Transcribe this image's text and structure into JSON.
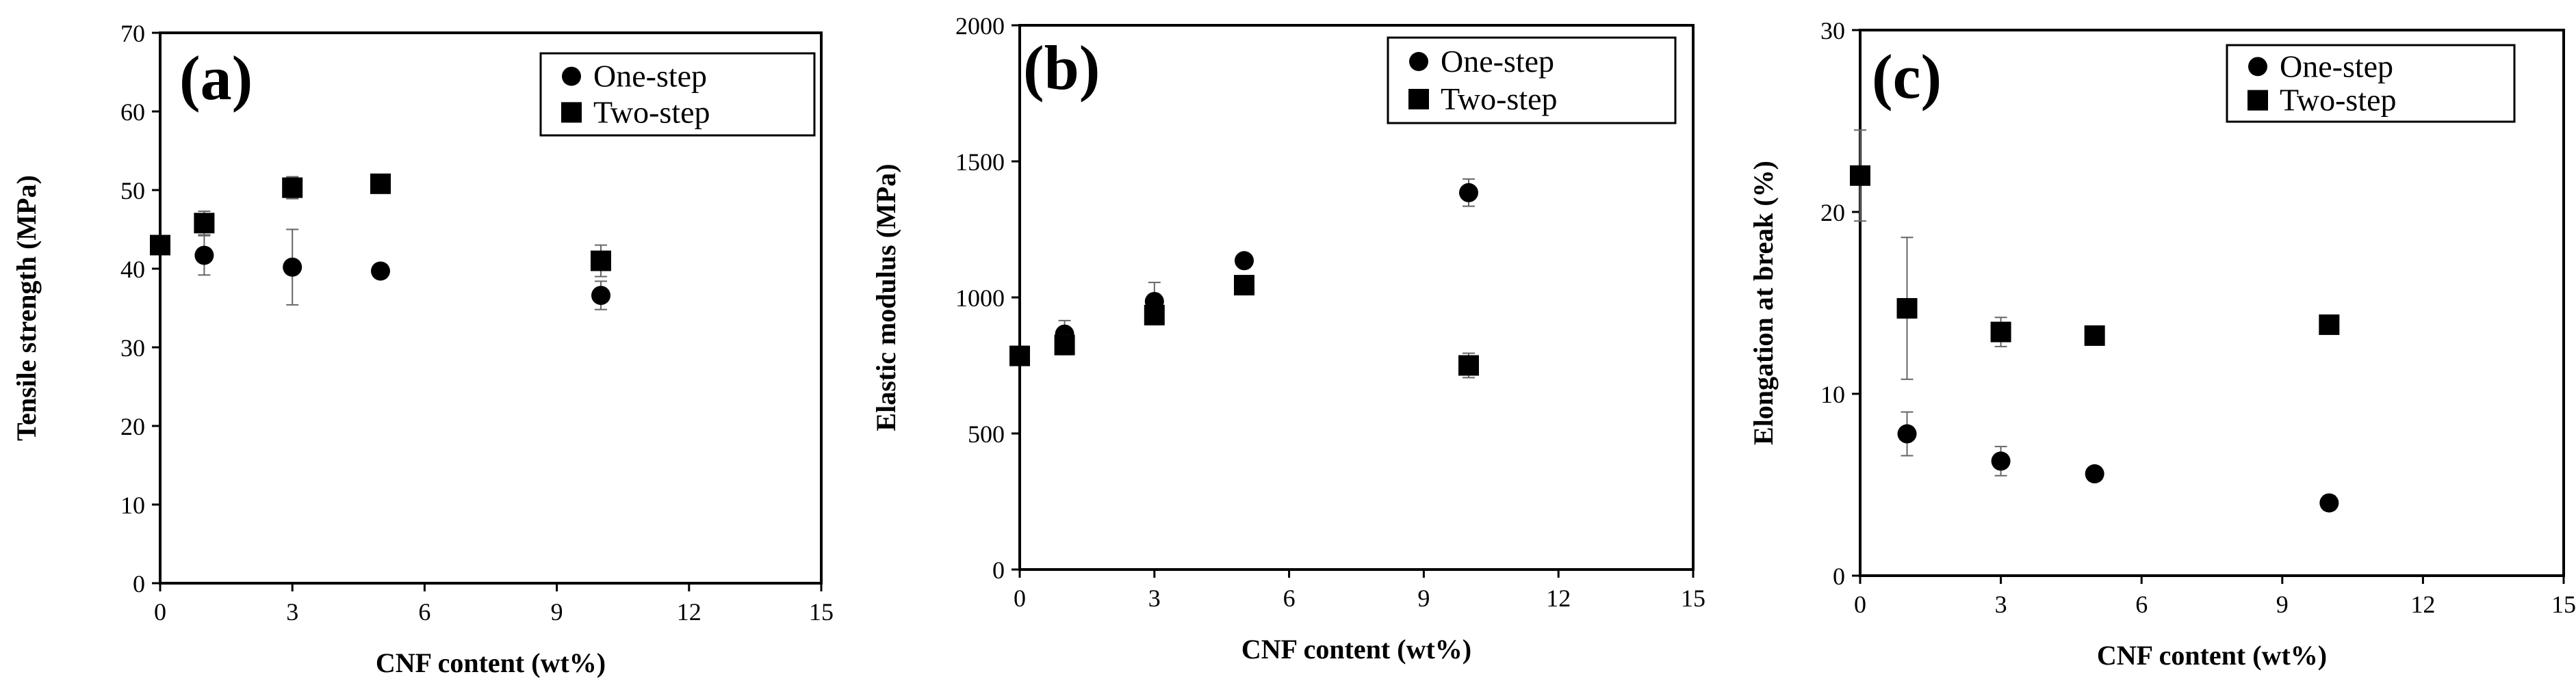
{
  "chart_data": [
    {
      "type": "scatter",
      "panel_label": "(a)",
      "xlabel": "CNF content (wt%)",
      "ylabel": "Tensile strength (MPa)",
      "xlim": [
        0,
        15
      ],
      "ylim": [
        0,
        70
      ],
      "xticks": [
        0,
        3,
        6,
        9,
        12,
        15
      ],
      "yticks": [
        0,
        10,
        20,
        30,
        40,
        50,
        60,
        70
      ],
      "legend_position": "top-right",
      "series": [
        {
          "name": "One-step",
          "marker": "circle",
          "points": [
            {
              "x": 1,
              "y": 41.7,
              "err": 2.5
            },
            {
              "x": 3,
              "y": 40.2,
              "err": 4.8
            },
            {
              "x": 5,
              "y": 39.7,
              "err": 0.6
            },
            {
              "x": 10,
              "y": 36.6,
              "err": 1.8
            }
          ]
        },
        {
          "name": "Two-step",
          "marker": "square",
          "points": [
            {
              "x": 0,
              "y": 43.0,
              "err": 0.6
            },
            {
              "x": 1,
              "y": 45.8,
              "err": 1.5
            },
            {
              "x": 3,
              "y": 50.3,
              "err": 1.4
            },
            {
              "x": 5,
              "y": 50.8,
              "err": 0.8
            },
            {
              "x": 10,
              "y": 41.0,
              "err": 2.0
            }
          ]
        }
      ]
    },
    {
      "type": "scatter",
      "panel_label": "(b)",
      "xlabel": "CNF content (wt%)",
      "ylabel": "Elastic modulus (MPa)",
      "xlim": [
        0,
        15
      ],
      "ylim": [
        0,
        2000
      ],
      "xticks": [
        0,
        3,
        6,
        9,
        12,
        15
      ],
      "yticks": [
        0,
        500,
        1000,
        1500,
        2000
      ],
      "legend_position": "top-right",
      "series": [
        {
          "name": "One-step",
          "marker": "circle",
          "points": [
            {
              "x": 1,
              "y": 865,
              "err": 50
            },
            {
              "x": 3,
              "y": 985,
              "err": 70
            },
            {
              "x": 5,
              "y": 1135,
              "err": 15
            },
            {
              "x": 10,
              "y": 1385,
              "err": 50
            }
          ]
        },
        {
          "name": "Two-step",
          "marker": "square",
          "points": [
            {
              "x": 0,
              "y": 785,
              "err": 35
            },
            {
              "x": 1,
              "y": 825,
              "err": 35
            },
            {
              "x": 3,
              "y": 935,
              "err": 35
            },
            {
              "x": 5,
              "y": 1045,
              "err": 20
            },
            {
              "x": 10,
              "y": 750,
              "err": 45
            }
          ]
        }
      ]
    },
    {
      "type": "scatter",
      "panel_label": "(c)",
      "xlabel": "CNF content (wt%)",
      "ylabel": "Elongation at break (%)",
      "xlim": [
        0,
        15
      ],
      "ylim": [
        0,
        30
      ],
      "xticks": [
        0,
        3,
        6,
        9,
        12,
        15
      ],
      "yticks": [
        0,
        10,
        20,
        30
      ],
      "legend_position": "top-right",
      "series": [
        {
          "name": "One-step",
          "marker": "circle",
          "points": [
            {
              "x": 1,
              "y": 7.8,
              "err": 1.2
            },
            {
              "x": 3,
              "y": 6.3,
              "err": 0.8
            },
            {
              "x": 5,
              "y": 5.6,
              "err": 0.3
            },
            {
              "x": 10,
              "y": 4.0,
              "err": 0.4
            }
          ]
        },
        {
          "name": "Two-step",
          "marker": "square",
          "points": [
            {
              "x": 0,
              "y": 22.0,
              "err": 2.5
            },
            {
              "x": 1,
              "y": 14.7,
              "err": 3.9
            },
            {
              "x": 3,
              "y": 13.4,
              "err": 0.8
            },
            {
              "x": 5,
              "y": 13.2,
              "err": 0.5
            },
            {
              "x": 10,
              "y": 13.8,
              "err": 0.5
            }
          ]
        }
      ]
    }
  ]
}
